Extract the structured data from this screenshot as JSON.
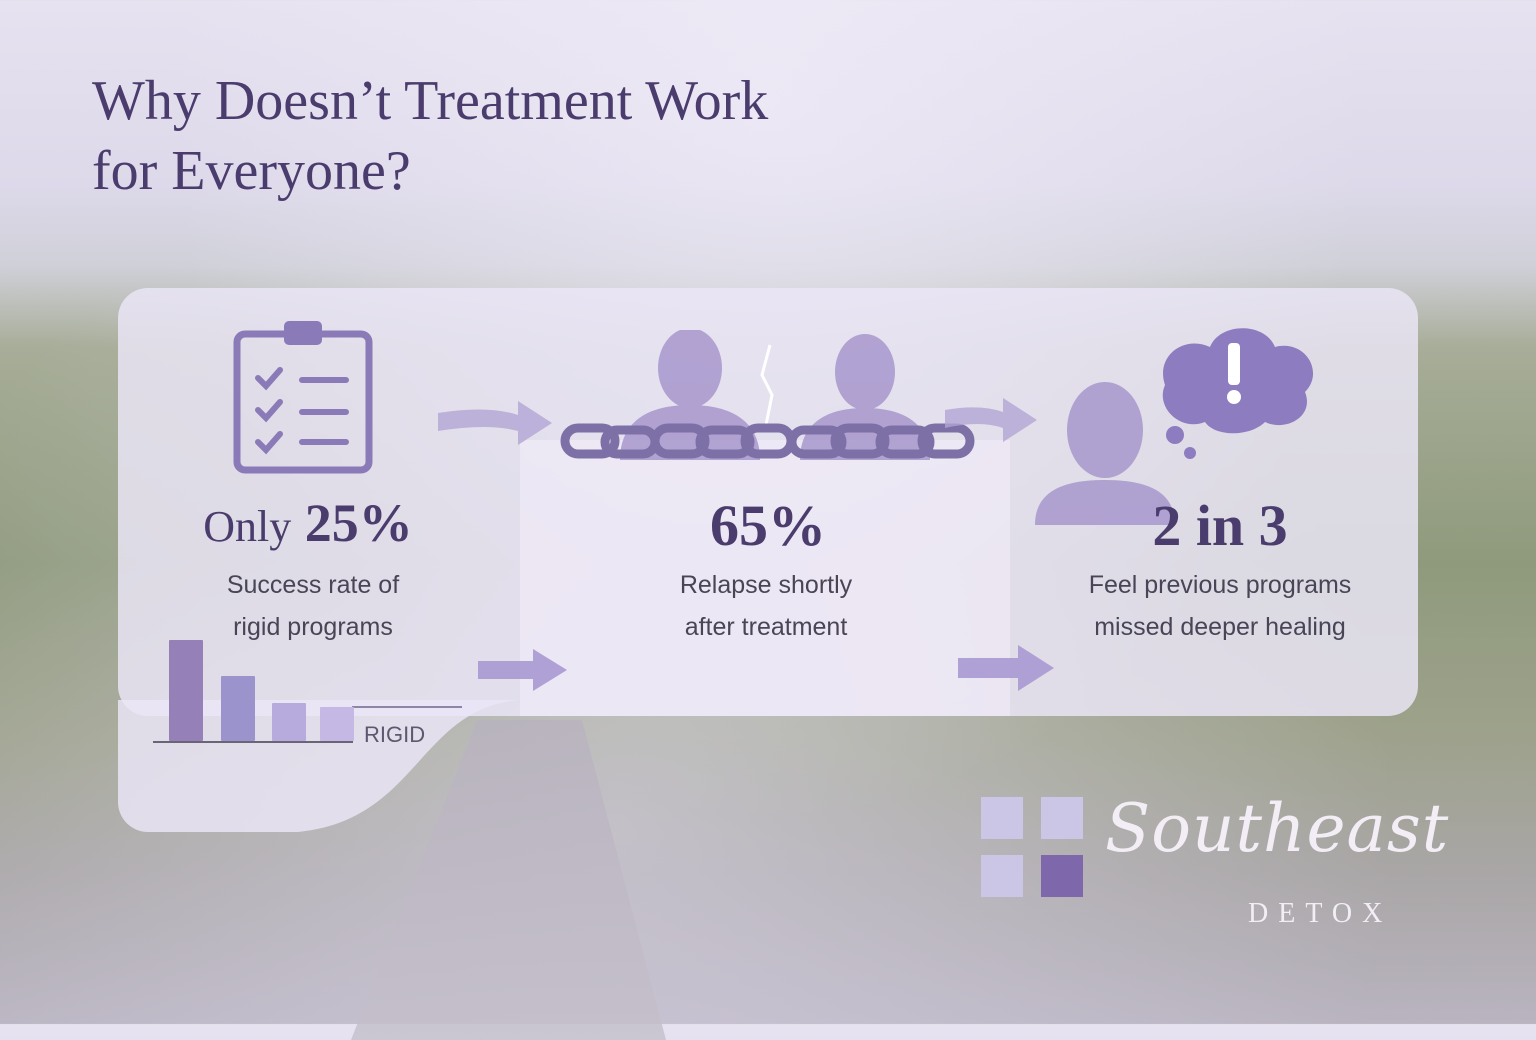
{
  "title": {
    "line1": "Why Doesn’t Treatment Work",
    "line2": "for Everyone?"
  },
  "stats": [
    {
      "prefix": "Only",
      "value": "25%",
      "caption_line1": "Success rate of",
      "caption_line2": "rigid programs",
      "icon": "clipboard-checklist-icon"
    },
    {
      "value": "65%",
      "caption_line1": "Relapse shortly",
      "caption_line2": "after treatment",
      "icon": "people-broken-chain-icon"
    },
    {
      "value": "2 in 3",
      "caption_line1": "Feel previous programs",
      "caption_line2": "missed deeper healing",
      "icon": "person-thought-exclamation-icon"
    }
  ],
  "mini_chart": {
    "label": "RIGID",
    "relative_values": [
      100,
      64,
      38,
      34
    ]
  },
  "colors": {
    "title": "#4b3c6e",
    "accent": "#8a76b4",
    "panel": "#ece6f8"
  },
  "logo": {
    "name": "Southeast",
    "sub": "DETOX"
  }
}
